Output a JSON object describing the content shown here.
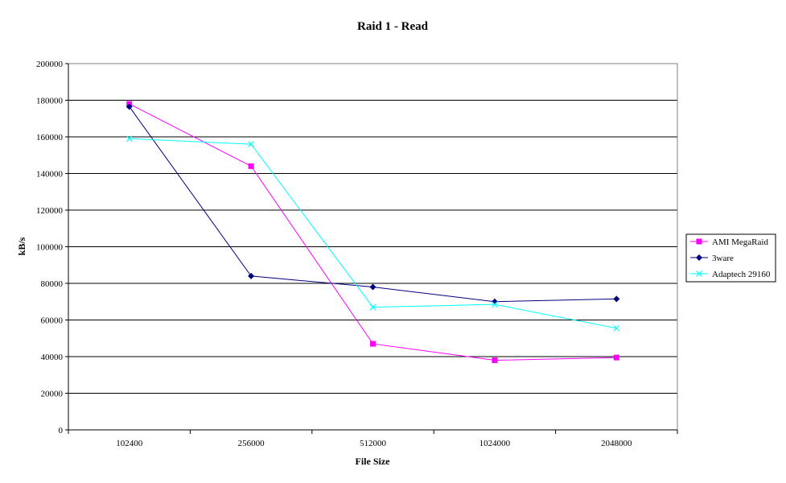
{
  "chart_data": {
    "type": "line",
    "title": "Raid 1 - Read",
    "xlabel": "File Size",
    "ylabel": "kB/s",
    "categories": [
      "102400",
      "256000",
      "512000",
      "1024000",
      "2048000"
    ],
    "ylim": [
      0,
      200000
    ],
    "yticks": [
      0,
      20000,
      40000,
      60000,
      80000,
      100000,
      120000,
      140000,
      160000,
      180000,
      200000
    ],
    "grid": true,
    "legend_position": "right",
    "series": [
      {
        "name": "AMI MegaRaid",
        "color": "#ff00ff",
        "marker": "square",
        "values": [
          178000,
          144000,
          47000,
          38000,
          39500
        ]
      },
      {
        "name": "3ware",
        "color": "#000080",
        "marker": "diamond",
        "values": [
          176500,
          84000,
          78000,
          70000,
          71500
        ]
      },
      {
        "name": "Adaptech 29160",
        "color": "#00ffff",
        "marker": "x",
        "values": [
          159000,
          156000,
          67000,
          68500,
          55500
        ]
      }
    ]
  }
}
